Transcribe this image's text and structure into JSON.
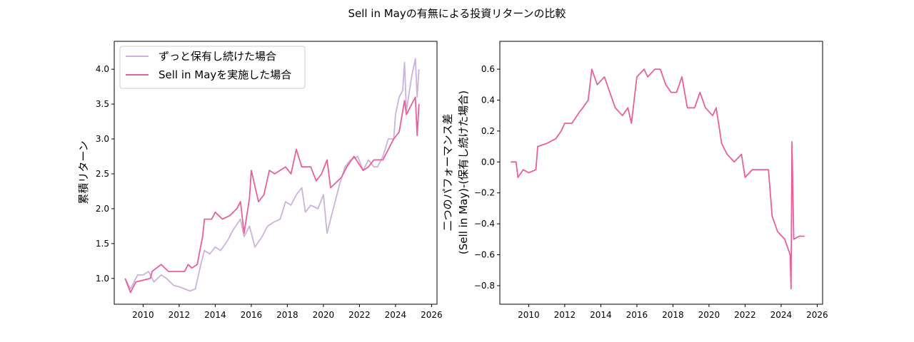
{
  "title": "Sell in Mayの有無による投資リターンの比較",
  "colors": {
    "hold": "#cbb2da",
    "sell": "#e8609b"
  },
  "chart_data": [
    {
      "type": "line",
      "ylabel": "累積リターン",
      "xlabel": "",
      "xlim": [
        2008.4,
        2026.3
      ],
      "ylim": [
        0.63,
        4.4
      ],
      "xticks": [
        "2010",
        "2012",
        "2014",
        "2016",
        "2018",
        "2020",
        "2022",
        "2024",
        "2026"
      ],
      "yticks": [
        "1.0",
        "1.5",
        "2.0",
        "2.5",
        "3.0",
        "3.5",
        "4.0"
      ],
      "legend_position": "top-left",
      "series": [
        {
          "name": "ずっと保有し続けた場合",
          "color_key": "hold",
          "points": [
            [
              2009.0,
              1.0
            ],
            [
              2009.3,
              0.85
            ],
            [
              2009.7,
              1.05
            ],
            [
              2010.0,
              1.05
            ],
            [
              2010.3,
              1.1
            ],
            [
              2010.6,
              0.95
            ],
            [
              2011.0,
              1.05
            ],
            [
              2011.3,
              1.0
            ],
            [
              2011.7,
              0.9
            ],
            [
              2012.0,
              0.88
            ],
            [
              2012.3,
              0.85
            ],
            [
              2012.6,
              0.82
            ],
            [
              2012.9,
              0.85
            ],
            [
              2013.2,
              1.2
            ],
            [
              2013.4,
              1.4
            ],
            [
              2013.7,
              1.35
            ],
            [
              2014.0,
              1.45
            ],
            [
              2014.3,
              1.4
            ],
            [
              2014.7,
              1.55
            ],
            [
              2015.0,
              1.7
            ],
            [
              2015.4,
              1.85
            ],
            [
              2015.6,
              1.6
            ],
            [
              2015.9,
              1.75
            ],
            [
              2016.2,
              1.45
            ],
            [
              2016.6,
              1.6
            ],
            [
              2016.9,
              1.75
            ],
            [
              2017.2,
              1.8
            ],
            [
              2017.6,
              1.85
            ],
            [
              2017.9,
              2.1
            ],
            [
              2018.2,
              2.05
            ],
            [
              2018.5,
              2.2
            ],
            [
              2018.8,
              2.3
            ],
            [
              2019.0,
              1.95
            ],
            [
              2019.3,
              2.05
            ],
            [
              2019.7,
              2.0
            ],
            [
              2020.0,
              2.2
            ],
            [
              2020.2,
              1.65
            ],
            [
              2020.5,
              1.95
            ],
            [
              2020.9,
              2.35
            ],
            [
              2021.2,
              2.6
            ],
            [
              2021.5,
              2.7
            ],
            [
              2021.9,
              2.75
            ],
            [
              2022.2,
              2.55
            ],
            [
              2022.5,
              2.7
            ],
            [
              2022.8,
              2.6
            ],
            [
              2023.0,
              2.6
            ],
            [
              2023.3,
              2.75
            ],
            [
              2023.6,
              3.0
            ],
            [
              2023.9,
              3.0
            ],
            [
              2024.0,
              3.35
            ],
            [
              2024.2,
              3.6
            ],
            [
              2024.4,
              3.7
            ],
            [
              2024.5,
              4.1
            ],
            [
              2024.6,
              3.4
            ],
            [
              2024.9,
              3.9
            ],
            [
              2025.1,
              4.15
            ],
            [
              2025.2,
              3.6
            ],
            [
              2025.3,
              4.0
            ]
          ]
        },
        {
          "name": "Sell in Mayを実施した場合",
          "color_key": "sell",
          "points": [
            [
              2009.0,
              1.0
            ],
            [
              2009.3,
              0.8
            ],
            [
              2009.6,
              0.95
            ],
            [
              2010.4,
              1.0
            ],
            [
              2010.5,
              1.1
            ],
            [
              2011.0,
              1.2
            ],
            [
              2011.4,
              1.1
            ],
            [
              2012.3,
              1.1
            ],
            [
              2012.5,
              1.2
            ],
            [
              2012.7,
              1.15
            ],
            [
              2013.0,
              1.2
            ],
            [
              2013.3,
              1.6
            ],
            [
              2013.4,
              1.85
            ],
            [
              2013.8,
              1.85
            ],
            [
              2014.0,
              1.95
            ],
            [
              2014.4,
              1.85
            ],
            [
              2014.8,
              1.9
            ],
            [
              2015.2,
              2.0
            ],
            [
              2015.4,
              2.1
            ],
            [
              2015.6,
              1.65
            ],
            [
              2015.9,
              2.15
            ],
            [
              2016.0,
              2.55
            ],
            [
              2016.4,
              2.1
            ],
            [
              2016.7,
              2.2
            ],
            [
              2017.0,
              2.55
            ],
            [
              2017.3,
              2.5
            ],
            [
              2017.9,
              2.6
            ],
            [
              2018.2,
              2.5
            ],
            [
              2018.5,
              2.85
            ],
            [
              2018.8,
              2.6
            ],
            [
              2019.3,
              2.6
            ],
            [
              2019.6,
              2.4
            ],
            [
              2019.9,
              2.5
            ],
            [
              2020.2,
              2.7
            ],
            [
              2020.4,
              2.3
            ],
            [
              2020.8,
              2.4
            ],
            [
              2021.0,
              2.45
            ],
            [
              2021.3,
              2.6
            ],
            [
              2021.7,
              2.75
            ],
            [
              2022.2,
              2.55
            ],
            [
              2022.5,
              2.6
            ],
            [
              2022.8,
              2.7
            ],
            [
              2023.3,
              2.7
            ],
            [
              2023.6,
              2.85
            ],
            [
              2023.9,
              3.0
            ],
            [
              2024.2,
              3.1
            ],
            [
              2024.5,
              3.55
            ],
            [
              2024.6,
              3.35
            ],
            [
              2024.9,
              3.5
            ],
            [
              2025.1,
              3.6
            ],
            [
              2025.2,
              3.05
            ],
            [
              2025.3,
              3.5
            ]
          ]
        }
      ]
    },
    {
      "type": "line",
      "ylabel_line1": "二つのパフォーマンス差",
      "ylabel_line2": "(Sell in May)-(保有し続けた場合)",
      "xlim": [
        2008.4,
        2026.3
      ],
      "ylim": [
        -0.92,
        0.78
      ],
      "xticks": [
        "2010",
        "2012",
        "2014",
        "2016",
        "2018",
        "2020",
        "2022",
        "2024",
        "2026"
      ],
      "yticks": [
        "−0.8",
        "−0.6",
        "−0.4",
        "−0.2",
        "0.0",
        "0.2",
        "0.4",
        "0.6"
      ],
      "series": [
        {
          "name": "diff",
          "color_key": "sell",
          "points": [
            [
              2009.0,
              0
            ],
            [
              2009.3,
              0
            ],
            [
              2009.4,
              -0.1
            ],
            [
              2009.7,
              -0.05
            ],
            [
              2010.0,
              -0.07
            ],
            [
              2010.4,
              -0.05
            ],
            [
              2010.5,
              0.1
            ],
            [
              2011.0,
              0.12
            ],
            [
              2011.5,
              0.15
            ],
            [
              2011.8,
              0.2
            ],
            [
              2012.0,
              0.25
            ],
            [
              2012.4,
              0.25
            ],
            [
              2012.8,
              0.32
            ],
            [
              2013.0,
              0.35
            ],
            [
              2013.3,
              0.4
            ],
            [
              2013.5,
              0.6
            ],
            [
              2013.8,
              0.5
            ],
            [
              2014.2,
              0.55
            ],
            [
              2014.5,
              0.45
            ],
            [
              2014.8,
              0.35
            ],
            [
              2015.2,
              0.3
            ],
            [
              2015.5,
              0.35
            ],
            [
              2015.7,
              0.25
            ],
            [
              2016.0,
              0.55
            ],
            [
              2016.4,
              0.6
            ],
            [
              2016.6,
              0.55
            ],
            [
              2017.0,
              0.6
            ],
            [
              2017.3,
              0.6
            ],
            [
              2017.6,
              0.5
            ],
            [
              2017.9,
              0.45
            ],
            [
              2018.2,
              0.45
            ],
            [
              2018.5,
              0.55
            ],
            [
              2018.8,
              0.35
            ],
            [
              2019.2,
              0.35
            ],
            [
              2019.5,
              0.45
            ],
            [
              2019.8,
              0.35
            ],
            [
              2020.2,
              0.3
            ],
            [
              2020.4,
              0.35
            ],
            [
              2020.7,
              0.12
            ],
            [
              2021.0,
              0.05
            ],
            [
              2021.4,
              0.0
            ],
            [
              2021.8,
              0.05
            ],
            [
              2022.0,
              -0.1
            ],
            [
              2022.4,
              -0.05
            ],
            [
              2022.8,
              -0.05
            ],
            [
              2023.3,
              -0.05
            ],
            [
              2023.5,
              -0.35
            ],
            [
              2023.8,
              -0.45
            ],
            [
              2024.2,
              -0.5
            ],
            [
              2024.5,
              -0.6
            ],
            [
              2024.55,
              -0.82
            ],
            [
              2024.6,
              0.13
            ],
            [
              2024.7,
              -0.5
            ],
            [
              2025.0,
              -0.48
            ],
            [
              2025.3,
              -0.48
            ]
          ]
        }
      ]
    }
  ]
}
